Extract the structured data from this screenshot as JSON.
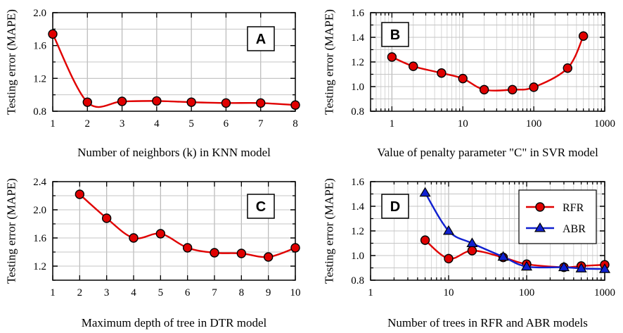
{
  "chart_data": [
    {
      "panel": "A",
      "type": "line",
      "xscale": "linear",
      "xlabel": "Number of neighbors (k) in KNN model",
      "ylabel": "Testing error (MAPE)",
      "xlim": [
        1,
        8
      ],
      "ylim": [
        0.8,
        2.0
      ],
      "xticks": [
        1,
        2,
        3,
        4,
        5,
        6,
        7,
        8
      ],
      "xtick_labels": [
        "1",
        "2",
        "3",
        "4",
        "5",
        "6",
        "7",
        "8"
      ],
      "yticks": [
        0.8,
        1.2,
        1.6,
        2.0
      ],
      "ytick_labels": [
        "0.8",
        "1.2",
        "1.6",
        "2.0"
      ],
      "grid": true,
      "series": [
        {
          "name": "KNN",
          "color": "#e00000",
          "marker": "circle",
          "x": [
            1,
            2,
            3,
            4,
            5,
            6,
            7,
            8
          ],
          "y": [
            1.74,
            0.91,
            0.92,
            0.925,
            0.91,
            0.9,
            0.9,
            0.875
          ]
        }
      ]
    },
    {
      "panel": "B",
      "type": "line",
      "xscale": "log",
      "xlabel": "Value of penalty parameter \"C\" in SVR model",
      "ylabel": "Testing error (MAPE)",
      "xlim": [
        0.5,
        1000
      ],
      "ylim": [
        0.8,
        1.6
      ],
      "xticks": [
        1,
        10,
        100,
        1000
      ],
      "xtick_labels": [
        "1",
        "10",
        "100",
        "1000"
      ],
      "yticks": [
        0.8,
        1.0,
        1.2,
        1.4,
        1.6
      ],
      "ytick_labels": [
        "0.8",
        "1.0",
        "1.2",
        "1.4",
        "1.6"
      ],
      "grid": true,
      "series": [
        {
          "name": "SVR",
          "color": "#e00000",
          "marker": "circle",
          "x": [
            1,
            2,
            5,
            10,
            20,
            50,
            100,
            300,
            500
          ],
          "y": [
            1.24,
            1.165,
            1.11,
            1.065,
            0.975,
            0.975,
            0.995,
            1.15,
            1.41
          ]
        }
      ]
    },
    {
      "panel": "C",
      "type": "line",
      "xscale": "linear",
      "xlabel": "Maximum depth of tree in DTR model",
      "ylabel": "Testing error (MAPE)",
      "xlim": [
        1,
        10
      ],
      "ylim": [
        1.0,
        2.4
      ],
      "xticks": [
        1,
        2,
        3,
        4,
        5,
        6,
        7,
        8,
        9,
        10
      ],
      "xtick_labels": [
        "1",
        "2",
        "3",
        "4",
        "5",
        "6",
        "7",
        "8",
        "9",
        "10"
      ],
      "yticks": [
        1.2,
        1.6,
        2.0,
        2.4
      ],
      "ytick_labels": [
        "1.2",
        "1.6",
        "2.0",
        "2.4"
      ],
      "grid": true,
      "series": [
        {
          "name": "DTR",
          "color": "#e00000",
          "marker": "circle",
          "x": [
            2,
            3,
            4,
            5,
            6,
            7,
            8,
            9,
            10
          ],
          "y": [
            2.22,
            1.88,
            1.6,
            1.66,
            1.46,
            1.39,
            1.38,
            1.33,
            1.46
          ]
        }
      ]
    },
    {
      "panel": "D",
      "type": "line",
      "xscale": "log",
      "xlabel": "Number of trees in RFR and ABR models",
      "ylabel": "Testing error (MAPE)",
      "xlim": [
        1,
        1000
      ],
      "ylim": [
        0.8,
        1.6
      ],
      "xticks": [
        1,
        10,
        100,
        1000
      ],
      "xtick_labels": [
        "1",
        "10",
        "100",
        "1000"
      ],
      "yticks": [
        0.8,
        1.0,
        1.2,
        1.4,
        1.6
      ],
      "ytick_labels": [
        "0.8",
        "1.0",
        "1.2",
        "1.4",
        "1.6"
      ],
      "grid": true,
      "legend": "top-right",
      "series": [
        {
          "name": "RFR",
          "color": "#e00000",
          "marker": "circle",
          "x": [
            5,
            10,
            20,
            50,
            100,
            300,
            500,
            1000
          ],
          "y": [
            1.125,
            0.975,
            1.04,
            0.985,
            0.93,
            0.905,
            0.915,
            0.925
          ]
        },
        {
          "name": "ABR",
          "color": "#1020d0",
          "marker": "triangle",
          "x": [
            5,
            10,
            20,
            50,
            100,
            300,
            500,
            1000
          ],
          "y": [
            1.51,
            1.2,
            1.1,
            0.99,
            0.91,
            0.905,
            0.895,
            0.89
          ]
        }
      ]
    }
  ]
}
